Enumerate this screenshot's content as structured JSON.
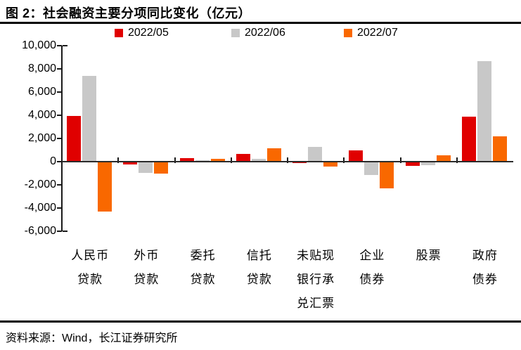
{
  "header": {
    "title": "图 2：社会融资主要分项同比变化（亿元）"
  },
  "footer": {
    "source": "资料来源：Wind，长江证券研究所"
  },
  "chart_data": {
    "type": "bar",
    "title": "图 2：社会融资主要分项同比变化（亿元）",
    "unit": "亿元",
    "legend_position": "top",
    "grid": false,
    "axis_color": "#1a1a1a",
    "categories": [
      "人民币贷款",
      "外币贷款",
      "委托贷款",
      "信托贷款",
      "未贴现银行承兑汇票",
      "企业债券",
      "股票",
      "政府债券"
    ],
    "category_label_lines": [
      [
        "人民币",
        "贷款"
      ],
      [
        "外币",
        "贷款"
      ],
      [
        "委托",
        "贷款"
      ],
      [
        "信托",
        "贷款"
      ],
      [
        "未贴现",
        "银行承",
        "兑汇票"
      ],
      [
        "企业",
        "债券"
      ],
      [
        "股票"
      ],
      [
        "政府",
        "债券"
      ]
    ],
    "series": [
      {
        "name": "2022/05",
        "color": "#e00000",
        "values": [
          3900,
          -250,
          275,
          650,
          -150,
          950,
          -400,
          3850
        ]
      },
      {
        "name": "2022/06",
        "color": "#c8c8c8",
        "values": [
          7400,
          -975,
          100,
          200,
          1250,
          -1200,
          -350,
          8675
        ]
      },
      {
        "name": "2022/07",
        "color": "#f96800",
        "values": [
          -4300,
          -1075,
          250,
          1150,
          -425,
          -2350,
          525,
          2175
        ]
      }
    ],
    "ylim": [
      -6000,
      10000
    ],
    "ytick_step": 2000
  }
}
